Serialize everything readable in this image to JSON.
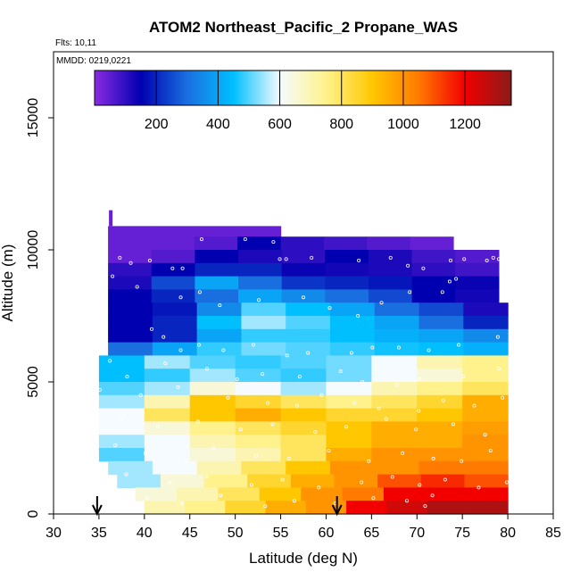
{
  "chart_data": {
    "type": "heatmap",
    "title": "ATOM2 Northeast_Pacific_2 Propane_WAS",
    "annotations": {
      "flights": "Flts: 10,11",
      "dates": "MMDD: 0219,0221"
    },
    "xlabel": "Latitude (deg N)",
    "ylabel": "Altitude (m)",
    "xlim": [
      30,
      85
    ],
    "ylim": [
      0,
      17500
    ],
    "x_ticks": [
      30,
      35,
      40,
      45,
      50,
      55,
      60,
      65,
      70,
      75,
      80,
      85
    ],
    "y_ticks": [
      0,
      5000,
      10000,
      15000
    ],
    "grid": false,
    "colorbar": {
      "placement": "top",
      "range": [
        0,
        1350
      ],
      "ticks": [
        200,
        400,
        600,
        800,
        1000,
        1200
      ],
      "colors": [
        "#8a2be2",
        "#0000b0",
        "#1a6fe0",
        "#00bfff",
        "#f5fbff",
        "#fff28c",
        "#ffc700",
        "#ff7a00",
        "#f20000",
        "#8b1a1a"
      ]
    },
    "series": [
      {
        "altitude_bins": [
          {
            "alt": [
              10500,
              10900
            ],
            "lat": [
              36,
              55
            ],
            "values": [
              40,
              40,
              40,
              40
            ]
          },
          {
            "alt": [
              10000,
              10500
            ],
            "lat": [
              36,
              74
            ],
            "values": [
              40,
              40,
              60,
              150,
              100,
              80,
              60,
              40
            ]
          },
          {
            "alt": [
              9500,
              10000
            ],
            "lat": [
              36,
              79
            ],
            "values": [
              40,
              60,
              150,
              120,
              100,
              150,
              120,
              80,
              60
            ]
          },
          {
            "alt": [
              9000,
              9500
            ],
            "lat": [
              36,
              79
            ],
            "values": [
              100,
              150,
              200,
              200,
              140,
              130,
              120,
              100,
              80
            ]
          },
          {
            "alt": [
              8500,
              9000
            ],
            "lat": [
              36,
              79
            ],
            "values": [
              120,
              250,
              400,
              300,
              220,
              200,
              180,
              150,
              140
            ]
          },
          {
            "alt": [
              8000,
              8500
            ],
            "lat": [
              36,
              79
            ],
            "values": [
              150,
              200,
              300,
              400,
              350,
              300,
              250,
              150,
              130
            ]
          },
          {
            "alt": [
              7500,
              8000
            ],
            "lat": [
              36,
              80
            ],
            "values": [
              150,
              180,
              350,
              500,
              450,
              400,
              300,
              250,
              120
            ]
          },
          {
            "alt": [
              7000,
              7500
            ],
            "lat": [
              36,
              80
            ],
            "values": [
              150,
              200,
              450,
              550,
              500,
              450,
              400,
              300,
              200
            ]
          },
          {
            "alt": [
              6500,
              7000
            ],
            "lat": [
              36,
              80
            ],
            "values": [
              150,
              200,
              400,
              480,
              480,
              450,
              420,
              400,
              350
            ]
          },
          {
            "alt": [
              6000,
              6500
            ],
            "lat": [
              36,
              80
            ],
            "values": [
              300,
              400,
              480,
              520,
              500,
              480,
              460,
              450,
              420
            ]
          },
          {
            "alt": [
              5500,
              6000
            ],
            "lat": [
              35,
              80
            ],
            "values": [
              450,
              550,
              500,
              480,
              500,
              520,
              600,
              700,
              750
            ]
          },
          {
            "alt": [
              5000,
              5500
            ],
            "lat": [
              35,
              80
            ],
            "values": [
              450,
              480,
              550,
              500,
              480,
              520,
              600,
              650,
              750
            ]
          },
          {
            "alt": [
              4500,
              5000
            ],
            "lat": [
              35,
              80
            ],
            "values": [
              500,
              550,
              650,
              600,
              550,
              600,
              700,
              750,
              800
            ]
          },
          {
            "alt": [
              4000,
              4500
            ],
            "lat": [
              35,
              80
            ],
            "values": [
              550,
              700,
              900,
              850,
              800,
              750,
              800,
              850,
              950
            ]
          },
          {
            "alt": [
              3500,
              4000
            ],
            "lat": [
              35,
              80
            ],
            "values": [
              600,
              800,
              900,
              950,
              900,
              850,
              850,
              900,
              950
            ]
          },
          {
            "alt": [
              3000,
              3500
            ],
            "lat": [
              35,
              80
            ],
            "values": [
              600,
              650,
              750,
              800,
              850,
              900,
              950,
              950,
              980
            ]
          },
          {
            "alt": [
              2500,
              3000
            ],
            "lat": [
              35,
              80
            ],
            "values": [
              550,
              600,
              700,
              750,
              800,
              900,
              950,
              950,
              1000
            ]
          },
          {
            "alt": [
              2000,
              2500
            ],
            "lat": [
              35,
              80
            ],
            "values": [
              500,
              600,
              650,
              700,
              800,
              950,
              1000,
              1000,
              1000
            ]
          },
          {
            "alt": [
              1500,
              2000
            ],
            "lat": [
              36,
              80
            ],
            "values": [
              550,
              600,
              700,
              800,
              900,
              1000,
              1000,
              1050,
              1050
            ]
          },
          {
            "alt": [
              1000,
              1500
            ],
            "lat": [
              37,
              80
            ],
            "values": [
              550,
              650,
              750,
              850,
              950,
              1000,
              1100,
              1150,
              1100
            ]
          },
          {
            "alt": [
              500,
              1000
            ],
            "lat": [
              39,
              80
            ],
            "values": [
              650,
              700,
              800,
              900,
              1000,
              1050,
              1200,
              1200,
              1200
            ]
          },
          {
            "alt": [
              0,
              500
            ],
            "lat": [
              40,
              80
            ],
            "values": [
              700,
              750,
              850,
              950,
              1000,
              1200,
              1250,
              1300,
              1300
            ]
          }
        ]
      }
    ],
    "flight_markers": [
      34.8,
      61.2
    ],
    "sample_points": [
      [
        35.5,
        10800
      ],
      [
        37.3,
        9700
      ],
      [
        38.5,
        9500
      ],
      [
        40.6,
        9600
      ],
      [
        43.1,
        9300
      ],
      [
        44.2,
        9300
      ],
      [
        46.3,
        10400
      ],
      [
        51.1,
        10400
      ],
      [
        54.2,
        10300
      ],
      [
        54.9,
        9650
      ],
      [
        55.6,
        9650
      ],
      [
        58.4,
        9700
      ],
      [
        63.6,
        9600
      ],
      [
        67.1,
        9700
      ],
      [
        69.0,
        9400
      ],
      [
        70.7,
        9300
      ],
      [
        73.7,
        9600
      ],
      [
        75.2,
        9650
      ],
      [
        77.7,
        9600
      ],
      [
        78.4,
        9700
      ],
      [
        79.0,
        9650
      ],
      [
        36.5,
        9000
      ],
      [
        39.2,
        8600
      ],
      [
        44.0,
        8200
      ],
      [
        46.1,
        8400
      ],
      [
        48.3,
        7900
      ],
      [
        52.6,
        8100
      ],
      [
        57.5,
        8200
      ],
      [
        60.4,
        7800
      ],
      [
        63.5,
        7500
      ],
      [
        66.1,
        8000
      ],
      [
        69.2,
        8400
      ],
      [
        72.8,
        8400
      ],
      [
        73.6,
        8800
      ],
      [
        74.3,
        8900
      ],
      [
        40.8,
        7000
      ],
      [
        42.1,
        6700
      ],
      [
        44.0,
        6200
      ],
      [
        46.0,
        6400
      ],
      [
        48.7,
        6200
      ],
      [
        52.0,
        6400
      ],
      [
        55.7,
        6000
      ],
      [
        58.0,
        6100
      ],
      [
        62.8,
        6100
      ],
      [
        65.1,
        6300
      ],
      [
        68.0,
        6300
      ],
      [
        71.3,
        6200
      ],
      [
        74.6,
        6400
      ],
      [
        78.9,
        6700
      ],
      [
        36.2,
        5800
      ],
      [
        38.1,
        5200
      ],
      [
        42.3,
        5700
      ],
      [
        46.9,
        5500
      ],
      [
        50.2,
        5100
      ],
      [
        53.0,
        5300
      ],
      [
        57.1,
        5200
      ],
      [
        61.6,
        5400
      ],
      [
        64.0,
        5000
      ],
      [
        67.8,
        4900
      ],
      [
        70.3,
        5100
      ],
      [
        75.1,
        5200
      ],
      [
        79.0,
        5500
      ],
      [
        35.1,
        4700
      ],
      [
        39.6,
        4500
      ],
      [
        43.7,
        4800
      ],
      [
        49.2,
        4400
      ],
      [
        53.6,
        4200
      ],
      [
        56.8,
        4100
      ],
      [
        59.5,
        4500
      ],
      [
        63.1,
        4200
      ],
      [
        65.8,
        4000
      ],
      [
        70.2,
        3900
      ],
      [
        72.9,
        4300
      ],
      [
        76.3,
        4100
      ],
      [
        79.4,
        4400
      ],
      [
        37.4,
        3600
      ],
      [
        41.5,
        3300
      ],
      [
        45.9,
        3500
      ],
      [
        50.6,
        3200
      ],
      [
        54.1,
        3400
      ],
      [
        58.8,
        3100
      ],
      [
        62.2,
        3300
      ],
      [
        66.6,
        3600
      ],
      [
        69.9,
        3200
      ],
      [
        74.0,
        3400
      ],
      [
        77.5,
        3000
      ],
      [
        36.8,
        2600
      ],
      [
        40.1,
        2300
      ],
      [
        44.6,
        2000
      ],
      [
        47.6,
        2500
      ],
      [
        52.3,
        2200
      ],
      [
        55.9,
        2100
      ],
      [
        60.3,
        2400
      ],
      [
        64.7,
        2000
      ],
      [
        68.4,
        2300
      ],
      [
        71.8,
        2100
      ],
      [
        74.9,
        2000
      ],
      [
        78.1,
        2400
      ],
      [
        38.0,
        1500
      ],
      [
        42.8,
        1200
      ],
      [
        46.9,
        1400
      ],
      [
        51.8,
        1100
      ],
      [
        55.2,
        1300
      ],
      [
        59.2,
        1000
      ],
      [
        63.9,
        1200
      ],
      [
        67.3,
        1400
      ],
      [
        70.3,
        1100
      ],
      [
        73.1,
        1300
      ],
      [
        76.8,
        1000
      ],
      [
        79.9,
        1200
      ],
      [
        40.3,
        600
      ],
      [
        44.1,
        400
      ],
      [
        48.4,
        700
      ],
      [
        53.3,
        300
      ],
      [
        56.5,
        500
      ],
      [
        61.0,
        400
      ],
      [
        65.2,
        600
      ],
      [
        68.9,
        500
      ],
      [
        70.9,
        300
      ],
      [
        71.7,
        700
      ]
    ]
  }
}
